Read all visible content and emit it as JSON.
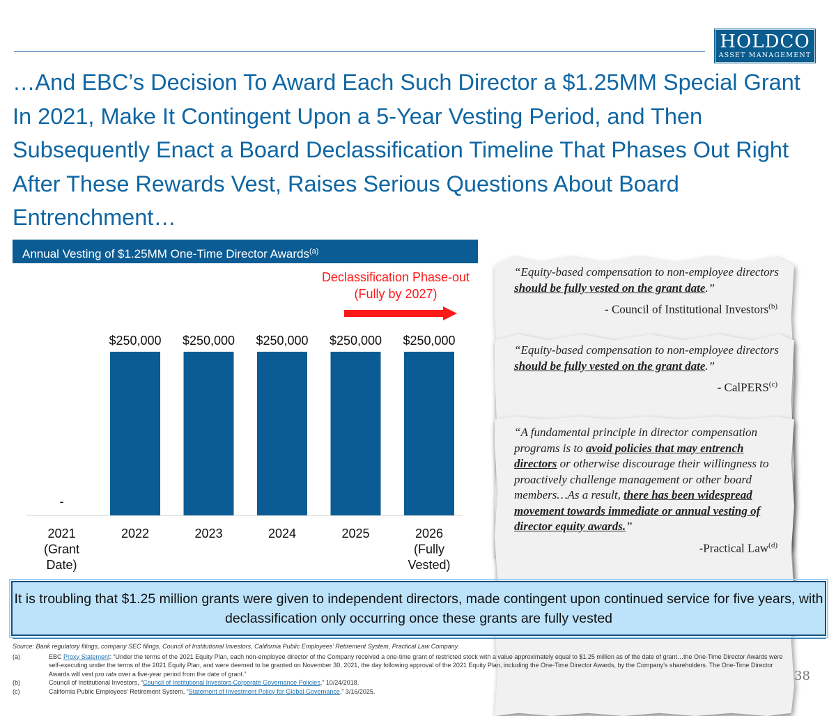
{
  "logo": {
    "name": "HOLDCO",
    "subtitle": "ASSET MANAGEMENT"
  },
  "title": "…And EBC’s Decision To Award Each Such Director a $1.25MM Special Grant In 2021, Make It Contingent Upon a 5-Year Vesting Period, and Then Subsequently Enact a Board Declassification Timeline That Phases Out Right After These Rewards Vest, Raises Serious Questions About Board Entrenchment…",
  "chart_header": {
    "text": "Annual Vesting of $1.25MM One-Time Director Awards",
    "sup": "(a)"
  },
  "declassification": {
    "line1": "Declassification Phase-out",
    "line2": "(Fully by 2027)"
  },
  "colors": {
    "bar": "#0b5c94",
    "accent_red": "#ff1a1a",
    "title_blue": "#0f66a3",
    "callout_bg": "#bde3fb"
  },
  "chart_data": {
    "type": "bar",
    "categories": [
      [
        "2021",
        "(Grant",
        "Date)"
      ],
      [
        "2022"
      ],
      [
        "2023"
      ],
      [
        "2024"
      ],
      [
        "2025"
      ],
      [
        "2026",
        "(Fully",
        "Vested)"
      ]
    ],
    "values": [
      0,
      250000,
      250000,
      250000,
      250000,
      250000
    ],
    "data_labels": [
      "-",
      "$250,000",
      "$250,000",
      "$250,000",
      "$250,000",
      "$250,000"
    ],
    "title": "Annual Vesting of $1.25MM One-Time Director Awards",
    "xlabel": "",
    "ylabel": "",
    "ylim": [
      0,
      250000
    ]
  },
  "quotes": [
    {
      "pre": "“Equity-based compensation to non-employee directors ",
      "bold": "should be fully vested on the grant date",
      "post": ".”",
      "attr": "- Council of Institutional Investors",
      "sup": "(b)"
    },
    {
      "pre": "“Equity-based compensation to non-employee directors ",
      "bold": "should be fully vested on the grant date",
      "post": ".”",
      "attr": "- CalPERS",
      "sup": "(c)"
    },
    {
      "p1": "“A fundamental principle in director compensation programs is to ",
      "b1": "avoid policies that may entrench directors",
      "p2": " or otherwise discourage their willingness to proactively challenge management or other board members…As a result, ",
      "b2": "there has been widespread movement towards immediate or annual vesting of director equity awards.",
      "p3": "”",
      "attr": "-Practical Law",
      "sup": "(d)"
    }
  ],
  "callout": "It is troubling that $1.25 million grants were given to independent directors, made contingent upon continued service for five years, with declassification only occurring once these grants are fully vested",
  "notes": {
    "source": "Source:  Bank regulatory filings, company SEC filings, Council of Institutional Investors, California Public Employees’ Retirement System, Practical Law Company.",
    "a_tag": "(a)",
    "a_pre": "EBC ",
    "a_link": "Proxy Statement",
    "a_text": ": “Under the terms of the 2021 Equity Plan, each non-employee director of the Company received a one-time grant of restricted stock with a value approximately equal to $1.25 million as of the date of grant…the One-Time Director Awards were self-executing under the terms of the 2021 Equity Plan, and were deemed to be granted on November 30, 2021, the day following approval of the 2021 Equity Plan, including the One-Time Director Awards, by the Company’s shareholders. The One-Time Director Awards will vest ",
    "a_italic": "pro rata",
    "a_end": " over a five-year period from the date of grant.”",
    "b_tag": "(b)",
    "b_pre": "Council of Institutional Investors, “",
    "b_link": "Council of Institutional Investors Corporate Governance Policies",
    "b_end": ",” 10/24/2018.",
    "c_tag": "(c)",
    "c_pre": "California Public Employees’ Retirement System, “",
    "c_link": "Statement of Investment Policy for Global Governance",
    "c_end": ",” 3/16/2025."
  },
  "page_number": "38"
}
